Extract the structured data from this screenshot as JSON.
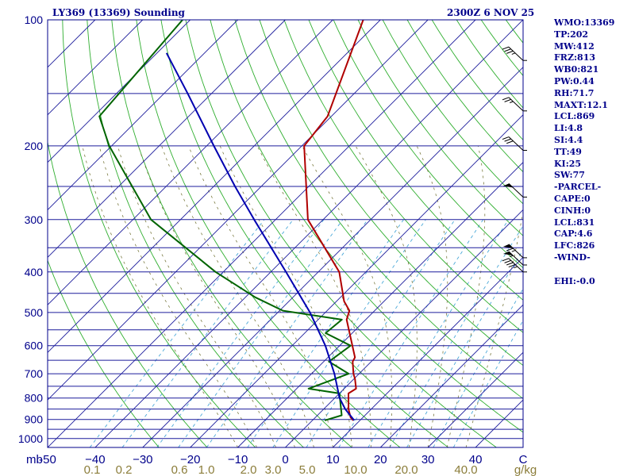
{
  "header": {
    "station_title": "LY369 (13369) Sounding",
    "valid_time": "2300Z  6 NOV 25"
  },
  "indices": [
    {
      "label": "WMO:13369"
    },
    {
      "label": "TP:202"
    },
    {
      "label": "MW:412"
    },
    {
      "label": "FRZ:813"
    },
    {
      "label": "WB0:821"
    },
    {
      "label": "PW:0.44"
    },
    {
      "label": "RH:71.7"
    },
    {
      "label": "MAXT:12.1"
    },
    {
      "label": "LCL:869"
    },
    {
      "label": "LI:4.8"
    },
    {
      "label": "SI:4.4"
    },
    {
      "label": "TT:49"
    },
    {
      "label": "KI:25"
    },
    {
      "label": "SW:77"
    },
    {
      "label": "-PARCEL-"
    },
    {
      "label": "CAPE:0"
    },
    {
      "label": "CINH:0"
    },
    {
      "label": "LCL:831"
    },
    {
      "label": "CAP:4.6"
    },
    {
      "label": "LFC:826"
    },
    {
      "label": "-WIND-"
    },
    {
      "label": ""
    },
    {
      "label": "EHI:-0.0"
    }
  ],
  "chart_data": {
    "type": "line",
    "subtype": "skew-t log-p",
    "x_axis": {
      "unit_label": "mb",
      "range_c": [
        -50,
        50
      ],
      "ticks": [
        {
          "value": -50,
          "label": "-50"
        },
        {
          "value": -40,
          "label": "−40"
        },
        {
          "value": -30,
          "label": "−30"
        },
        {
          "value": -20,
          "label": "−20"
        },
        {
          "value": -10,
          "label": "−10"
        },
        {
          "value": 0,
          "label": "0"
        },
        {
          "value": 10,
          "label": "10"
        },
        {
          "value": 20,
          "label": "20"
        },
        {
          "value": 30,
          "label": "30"
        },
        {
          "value": 40,
          "label": "40"
        },
        {
          "value": 50,
          "label": "C"
        }
      ]
    },
    "y_axis": {
      "scale": "log",
      "range_mb": [
        1050,
        100
      ],
      "ticks": [
        {
          "value": 100,
          "label": "100"
        },
        {
          "value": 200,
          "label": "200"
        },
        {
          "value": 300,
          "label": "300"
        },
        {
          "value": 400,
          "label": "400"
        },
        {
          "value": 500,
          "label": "500"
        },
        {
          "value": 600,
          "label": "600"
        },
        {
          "value": 700,
          "label": "700"
        },
        {
          "value": 800,
          "label": "800"
        },
        {
          "value": 900,
          "label": "900"
        },
        {
          "value": 1000,
          "label": "1000"
        }
      ],
      "isobars": [
        100,
        150,
        200,
        250,
        300,
        350,
        400,
        450,
        500,
        550,
        600,
        650,
        700,
        750,
        800,
        850,
        900,
        950,
        1000,
        1050
      ]
    },
    "mixing_ratio_axis": {
      "unit": "g/kg",
      "ticks": [
        {
          "value": 0.1,
          "label": "0.1"
        },
        {
          "value": 0.2,
          "label": "0.2"
        },
        {
          "value": 0.6,
          "label": "0.6"
        },
        {
          "value": 1.0,
          "label": "1.0"
        },
        {
          "value": 2.0,
          "label": "2.0"
        },
        {
          "value": 3.0,
          "label": "3.0"
        },
        {
          "value": 5.0,
          "label": "5.0"
        },
        {
          "value": 10.0,
          "label": "10.0"
        },
        {
          "value": 20.0,
          "label": "20.0"
        },
        {
          "value": 40.0,
          "label": "40.0"
        }
      ]
    },
    "series": [
      {
        "role": "temperature",
        "color": "#b00000",
        "points": [
          {
            "p": 100,
            "t": -73.6
          },
          {
            "p": 170,
            "t": -60.8
          },
          {
            "p": 200,
            "t": -59.5
          },
          {
            "p": 300,
            "t": -43.2
          },
          {
            "p": 400,
            "t": -25.6
          },
          {
            "p": 470,
            "t": -18.4
          },
          {
            "p": 495,
            "t": -15.3
          },
          {
            "p": 520,
            "t": -14.0
          },
          {
            "p": 640,
            "t": -4.3
          },
          {
            "p": 655,
            "t": -3.9
          },
          {
            "p": 700,
            "t": -1.2
          },
          {
            "p": 720,
            "t": 0.2
          },
          {
            "p": 760,
            "t": 2.5
          },
          {
            "p": 780,
            "t": 1.9
          },
          {
            "p": 850,
            "t": 5.2
          },
          {
            "p": 890,
            "t": 7.4
          },
          {
            "p": 905,
            "t": 8.6
          }
        ]
      },
      {
        "role": "dewpoint",
        "color": "#006400",
        "points": [
          {
            "p": 100,
            "t": -111.6
          },
          {
            "p": 170,
            "t": -108.8
          },
          {
            "p": 200,
            "t": -100.5
          },
          {
            "p": 300,
            "t": -76.2
          },
          {
            "p": 400,
            "t": -51.6
          },
          {
            "p": 460,
            "t": -37.9
          },
          {
            "p": 495,
            "t": -29.3
          },
          {
            "p": 520,
            "t": -15.0
          },
          {
            "p": 560,
            "t": -15.6
          },
          {
            "p": 600,
            "t": -7.7
          },
          {
            "p": 655,
            "t": -8.9
          },
          {
            "p": 700,
            "t": -2.2
          },
          {
            "p": 760,
            "t": -7.5
          },
          {
            "p": 780,
            "t": 0.0
          },
          {
            "p": 880,
            "t": 5.1
          },
          {
            "p": 905,
            "t": 2.6
          }
        ]
      },
      {
        "role": "parcel",
        "color": "#0000b0",
        "points": [
          {
            "p": 905,
            "t": 8.8
          },
          {
            "p": 850,
            "t": 4.5
          },
          {
            "p": 800,
            "t": 1.0
          },
          {
            "p": 700,
            "t": -5.2
          },
          {
            "p": 600,
            "t": -13.0
          },
          {
            "p": 500,
            "t": -23.2
          },
          {
            "p": 400,
            "t": -36.8
          },
          {
            "p": 300,
            "t": -54.5
          },
          {
            "p": 250,
            "t": -65.5
          },
          {
            "p": 200,
            "t": -78.5
          },
          {
            "p": 150,
            "t": -95.0
          },
          {
            "p": 120,
            "t": -108.0
          }
        ]
      }
    ],
    "wind_barbs": [
      {
        "p": 125,
        "speed_kt": 35
      },
      {
        "p": 165,
        "speed_kt": 25
      },
      {
        "p": 205,
        "speed_kt": 30
      },
      {
        "p": 265,
        "speed_kt": 50
      },
      {
        "p": 370,
        "speed_kt": 65
      },
      {
        "p": 385,
        "speed_kt": 55
      },
      {
        "p": 400,
        "speed_kt": 45
      }
    ]
  }
}
